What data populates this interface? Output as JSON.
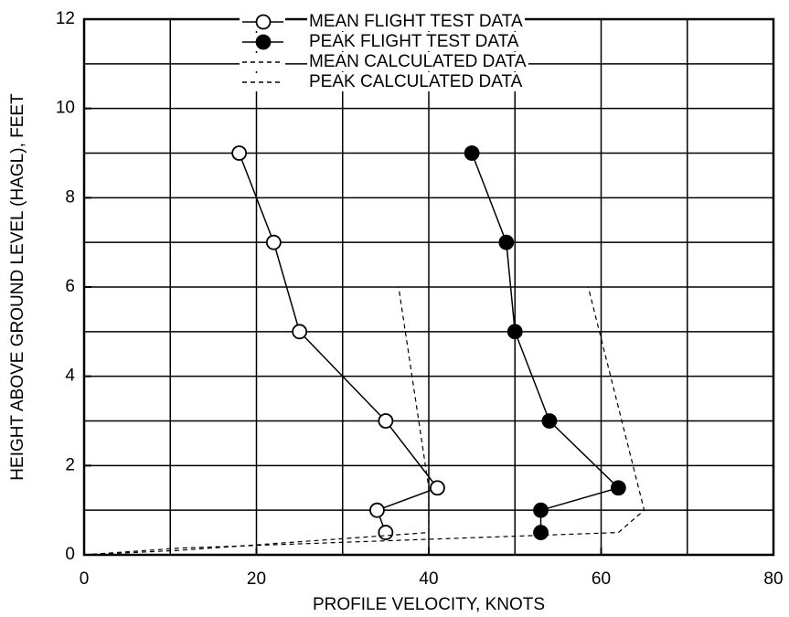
{
  "chart_data": {
    "type": "line",
    "xlabel": "PROFILE VELOCITY, KNOTS",
    "ylabel": "HEIGHT ABOVE GROUND LEVEL (HAGL), FEET",
    "xlim": [
      0,
      80
    ],
    "ylim": [
      0,
      12
    ],
    "xticks": [
      0,
      20,
      40,
      60,
      80
    ],
    "yticks": [
      0,
      2,
      4,
      6,
      8,
      10,
      12
    ],
    "xgrid": [
      10,
      20,
      30,
      40,
      50,
      60,
      70
    ],
    "ygrid": [
      1,
      2,
      3,
      4,
      5,
      6,
      7,
      8,
      9,
      10,
      11
    ],
    "grid": true,
    "legend": "top",
    "series": [
      {
        "name": "MEAN FLIGHT TEST DATA",
        "color": "#000000",
        "style": "solid",
        "marker": "open",
        "x": [
          18,
          22,
          25,
          35,
          41,
          34,
          35
        ],
        "values": [
          9,
          7,
          5,
          3,
          1.5,
          1,
          0.5
        ]
      },
      {
        "name": "PEAK FLIGHT TEST DATA",
        "color": "#000000",
        "style": "solid",
        "marker": "filled",
        "x": [
          45,
          49,
          50,
          54,
          62,
          53,
          53
        ],
        "values": [
          9,
          7,
          5,
          3,
          1.5,
          1,
          0.5
        ]
      },
      {
        "name": "MEAN CALCULATED DATA",
        "color": "#000000",
        "style": "dashed",
        "marker": "none",
        "x": [
          0,
          11,
          40,
          40,
          36.5
        ],
        "values": [
          0,
          0.1,
          0.5,
          1.5,
          6
        ]
      },
      {
        "name": "PEAK CALCULATED DATA",
        "color": "#000000",
        "style": "dashed",
        "marker": "none",
        "x": [
          0,
          11,
          62,
          65,
          58.5
        ],
        "values": [
          0,
          0.15,
          0.5,
          1,
          6
        ]
      }
    ]
  }
}
